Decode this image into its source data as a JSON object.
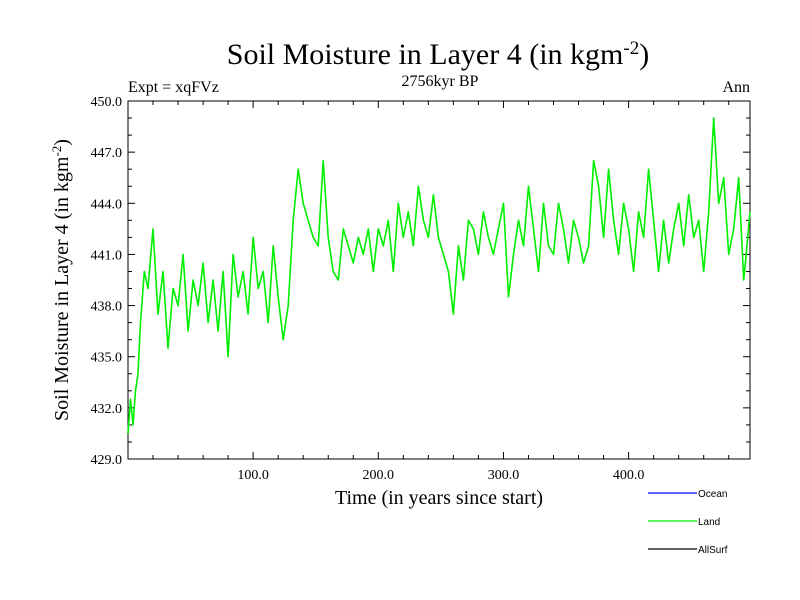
{
  "chart_data": {
    "type": "line",
    "title": "Soil Moisture in Layer 4 (in kgm",
    "title_sup": "-2",
    "title_close": ")",
    "subtitle": "2756kyr BP",
    "left_label": "Expt = xqFVz",
    "right_label": "Ann",
    "xlabel": "Time (in years since start)",
    "ylabel": "Soil Moisture in Layer 4 (in kgm",
    "ylabel_sup": "-2",
    "ylabel_close": ")",
    "xlim": [
      0,
      497
    ],
    "ylim": [
      429.0,
      450.0
    ],
    "xticks": [
      100,
      200,
      300,
      400
    ],
    "xtick_labels": [
      "100.0",
      "200.0",
      "300.0",
      "400.0"
    ],
    "yticks": [
      429,
      432,
      435,
      438,
      441,
      444,
      447,
      450
    ],
    "ytick_labels": [
      "429.0",
      "432.0",
      "435.0",
      "438.0",
      "441.0",
      "444.0",
      "447.0",
      "450.0"
    ],
    "legend": [
      {
        "name": "Ocean",
        "color": "#0000ff"
      },
      {
        "name": "Land",
        "color": "#00ee00"
      },
      {
        "name": "AllSurf",
        "color": "#000000"
      }
    ],
    "series": [
      {
        "name": "Land",
        "color": "#00ee00",
        "x": [
          0,
          2,
          4,
          6,
          8,
          10,
          13,
          16,
          20,
          24,
          28,
          32,
          36,
          40,
          44,
          48,
          52,
          56,
          60,
          64,
          68,
          72,
          76,
          80,
          84,
          88,
          92,
          96,
          100,
          104,
          108,
          112,
          116,
          120,
          124,
          128,
          132,
          136,
          140,
          144,
          148,
          152,
          156,
          160,
          164,
          168,
          172,
          176,
          180,
          184,
          188,
          192,
          196,
          200,
          204,
          208,
          212,
          216,
          220,
          224,
          228,
          232,
          236,
          240,
          244,
          248,
          252,
          256,
          260,
          264,
          268,
          272,
          276,
          280,
          284,
          288,
          292,
          296,
          300,
          304,
          308,
          312,
          316,
          320,
          324,
          328,
          332,
          336,
          340,
          344,
          348,
          352,
          356,
          360,
          364,
          368,
          372,
          376,
          380,
          384,
          388,
          392,
          396,
          400,
          404,
          408,
          412,
          416,
          420,
          424,
          428,
          432,
          436,
          440,
          444,
          448,
          452,
          456,
          460,
          464,
          468,
          472,
          476,
          480,
          484,
          488,
          492,
          494,
          497
        ],
        "values": [
          430.5,
          432.5,
          431.0,
          433.0,
          434.0,
          437.0,
          440.0,
          439.0,
          442.5,
          437.5,
          440.0,
          435.5,
          439.0,
          438.0,
          441.0,
          436.5,
          439.5,
          438.0,
          440.5,
          437.0,
          439.5,
          436.5,
          440.0,
          435.0,
          441.0,
          438.5,
          440.0,
          437.5,
          442.0,
          439.0,
          440.0,
          437.0,
          441.5,
          438.5,
          436.0,
          438.0,
          443.0,
          446.0,
          444.0,
          443.0,
          442.0,
          441.5,
          446.5,
          442.0,
          440.0,
          439.5,
          442.5,
          441.5,
          440.5,
          442.0,
          441.0,
          442.5,
          440.0,
          442.5,
          441.5,
          443.0,
          440.0,
          444.0,
          442.0,
          443.5,
          441.5,
          445.0,
          443.0,
          442.0,
          444.5,
          442.0,
          441.0,
          440.0,
          437.5,
          441.5,
          439.5,
          443.0,
          442.5,
          441.0,
          443.5,
          442.0,
          441.0,
          442.5,
          444.0,
          438.5,
          441.0,
          443.0,
          441.5,
          445.0,
          442.5,
          440.0,
          444.0,
          441.5,
          441.0,
          444.0,
          442.5,
          440.5,
          443.0,
          442.0,
          440.5,
          441.5,
          446.5,
          445.0,
          442.0,
          446.0,
          443.0,
          441.0,
          444.0,
          442.5,
          440.0,
          443.5,
          442.0,
          446.0,
          443.0,
          440.0,
          443.0,
          440.5,
          442.5,
          444.0,
          441.5,
          444.5,
          442.0,
          443.0,
          440.0,
          443.5,
          449.0,
          444.0,
          445.5,
          441.0,
          442.5,
          445.5,
          439.5,
          441.0,
          443.5
        ]
      },
      {
        "name": "Ocean",
        "color": "#0000ff",
        "x": [],
        "values": []
      },
      {
        "name": "AllSurf",
        "color": "#000000",
        "x": [],
        "values": []
      }
    ]
  }
}
